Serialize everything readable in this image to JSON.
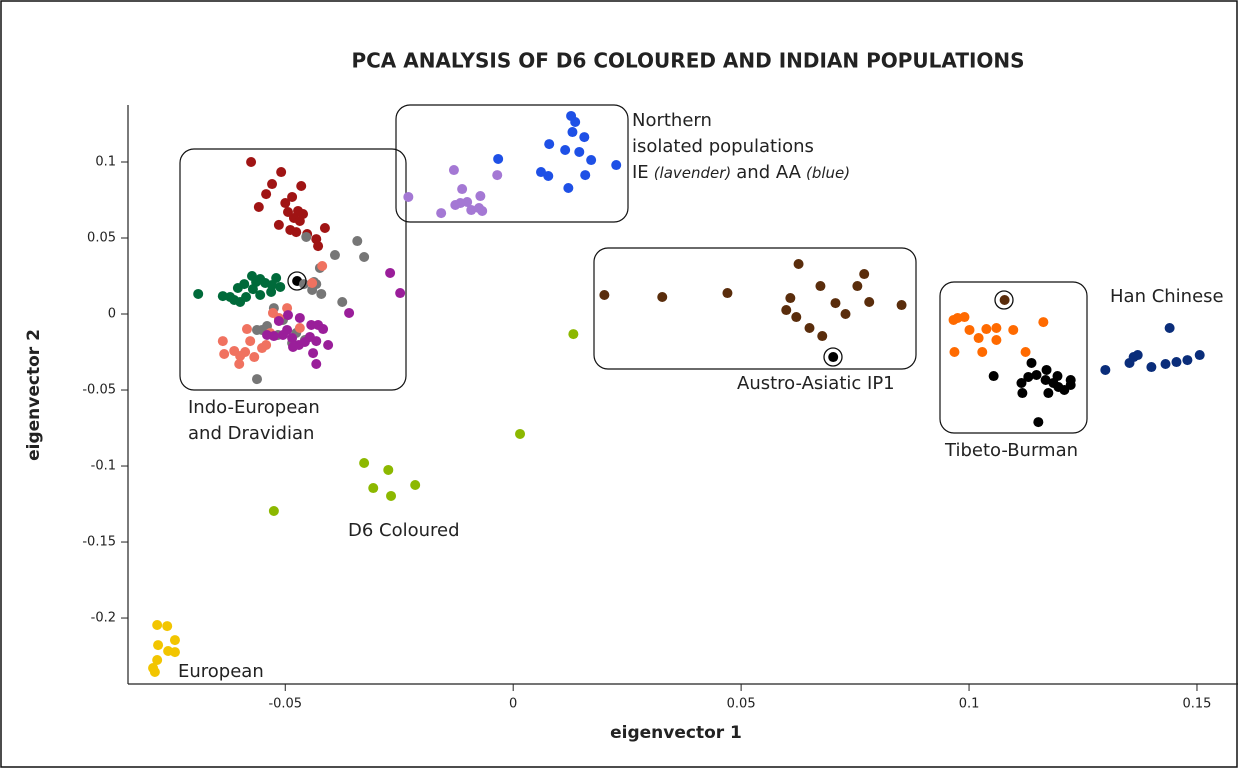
{
  "chart_data": {
    "type": "scatter",
    "title": "PCA ANALYSIS OF D6 COLOURED AND INDIAN POPULATIONS",
    "x_label": "eigenvector 1",
    "y_label": "eigenvector 2",
    "xlim": [
      -0.0845,
      0.159
    ],
    "ylim": [
      -0.2434,
      0.1375
    ],
    "xticks": [
      -0.05,
      0,
      0.05,
      0.1,
      0.15
    ],
    "yticks": [
      -0.2,
      -0.15,
      -0.1,
      -0.05,
      0,
      0.05,
      0.1
    ],
    "annotations": {
      "northern": [
        "Northern",
        "isolated populations"
      ],
      "northern_detail": [
        "IE",
        "(lavender)",
        "and AA",
        "(blue)"
      ],
      "indo_european": [
        "Indo-European",
        "and Dravidian"
      ],
      "austro_asiatic": "Austro-Asiatic IP1",
      "tibeto_burman": "Tibeto-Burman",
      "han": "Han Chinese",
      "d6": "D6 Coloured",
      "european": "European"
    },
    "series": [
      {
        "color": "#f2c500",
        "x": [
          -0.0781,
          -0.0759,
          -0.0742,
          -0.0779,
          -0.0757,
          -0.0742,
          -0.0781,
          -0.079,
          -0.0786
        ],
        "y": [
          -0.2046,
          -0.2053,
          -0.2145,
          -0.2178,
          -0.2217,
          -0.2224,
          -0.2276,
          -0.2329,
          -0.2355
        ]
      },
      {
        "color": "#8cb800",
        "x": [
          -0.0525,
          -0.0327,
          -0.0307,
          -0.0274,
          -0.0268,
          -0.0215,
          0.0015,
          0.0132
        ],
        "y": [
          -0.1296,
          -0.098,
          -0.1145,
          -0.1026,
          -0.1197,
          -0.1125,
          -0.0789,
          -0.0132
        ]
      },
      {
        "color": "#0a2d7a",
        "x": [
          0.1299,
          0.1352,
          0.1361,
          0.137,
          0.14,
          0.1431,
          0.144,
          0.1455,
          0.1479,
          0.1506
        ],
        "y": [
          -0.0368,
          -0.0322,
          -0.0283,
          -0.027,
          -0.0349,
          -0.0329,
          -0.0092,
          -0.0316,
          -0.0303,
          -0.027
        ]
      },
      {
        "color": "#ff6a00",
        "x": [
          0.0966,
          0.0975,
          0.099,
          0.0968,
          0.1001,
          0.1021,
          0.1038,
          0.106,
          0.1029,
          0.106,
          0.1097,
          0.1124,
          0.1163
        ],
        "y": [
          -0.0039,
          -0.0026,
          -0.002,
          -0.025,
          -0.0105,
          -0.0158,
          -0.0099,
          -0.0092,
          -0.025,
          -0.0171,
          -0.0105,
          -0.025,
          -0.0053
        ]
      },
      {
        "color": "#000000",
        "x": [
          0.1054,
          0.1115,
          0.1137,
          0.113,
          0.1117,
          0.1148,
          0.1152,
          0.1168,
          0.117,
          0.1185,
          0.1194,
          0.1209,
          0.1223,
          0.1223,
          0.1196,
          0.1174,
          0.0702,
          -0.0474
        ],
        "y": [
          -0.0408,
          -0.0454,
          -0.0322,
          -0.0414,
          -0.052,
          -0.0401,
          -0.0711,
          -0.0434,
          -0.0368,
          -0.0454,
          -0.0408,
          -0.05,
          -0.0467,
          -0.0434,
          -0.048,
          -0.052,
          -0.0283,
          0.0217
        ]
      },
      {
        "color": "#5a2d0c",
        "x": [
          0.02,
          0.0327,
          0.047,
          0.0608,
          0.0599,
          0.0621,
          0.0626,
          0.065,
          0.0674,
          0.0678,
          0.0707,
          0.0729,
          0.0755,
          0.077,
          0.0781,
          0.0852,
          0.1078
        ],
        "y": [
          0.0125,
          0.0112,
          0.0138,
          0.0105,
          0.0026,
          -0.002,
          0.0329,
          -0.0092,
          0.0184,
          -0.0145,
          0.0072,
          0,
          0.0184,
          0.0263,
          0.0079,
          0.0059,
          0.0092
        ]
      },
      {
        "color": "#a478d4",
        "x": [
          -0.023,
          -0.0158,
          -0.013,
          -0.0127,
          -0.0116,
          -0.0112,
          -0.0101,
          -0.0092,
          -0.0072,
          -0.0075,
          -0.0068,
          -0.0035
        ],
        "y": [
          0.077,
          0.0664,
          0.0947,
          0.0717,
          0.073,
          0.0822,
          0.0737,
          0.0684,
          0.0776,
          0.0697,
          0.0678,
          0.0914
        ]
      },
      {
        "color": "#1e50e6",
        "x": [
          -0.0033,
          0.0061,
          0.0077,
          0.0079,
          0.0114,
          0.0121,
          0.0127,
          0.0136,
          0.013,
          0.0145,
          0.0156,
          0.0158,
          0.0171,
          0.0226
        ],
        "y": [
          0.102,
          0.0934,
          0.0908,
          0.1118,
          0.1079,
          0.0829,
          0.1303,
          0.1263,
          0.1197,
          0.1066,
          0.1164,
          0.0914,
          0.1013,
          0.098
        ]
      },
      {
        "color": "#a01414",
        "x": [
          -0.0575,
          -0.0558,
          -0.0542,
          -0.0529,
          -0.0509,
          -0.05,
          -0.0494,
          -0.0489,
          -0.0485,
          -0.0481,
          -0.0472,
          -0.0468,
          -0.0461,
          -0.0452,
          -0.0465,
          -0.0432,
          -0.0428,
          -0.0413,
          -0.0514,
          -0.0476
        ],
        "y": [
          0.1,
          0.0704,
          0.0789,
          0.0855,
          0.0934,
          0.073,
          0.0671,
          0.0553,
          0.077,
          0.0632,
          0.0678,
          0.0612,
          0.0658,
          0.0526,
          0.0842,
          0.0493,
          0.0447,
          0.0566,
          0.0586,
          0.0539
        ]
      },
      {
        "color": "#006a3a",
        "x": [
          -0.0691,
          -0.0637,
          -0.0621,
          -0.0612,
          -0.0604,
          -0.0599,
          -0.059,
          -0.0586,
          -0.0573,
          -0.0571,
          -0.0564,
          -0.0555,
          -0.0544,
          -0.0529,
          -0.052,
          -0.0511,
          -0.0531,
          -0.0555
        ],
        "y": [
          0.0132,
          0.0118,
          0.0112,
          0.0092,
          0.0171,
          0.0079,
          0.0197,
          0.0112,
          0.025,
          0.0164,
          0.0211,
          0.023,
          0.0204,
          0.0191,
          0.0237,
          0.0178,
          0.0145,
          0.0125
        ]
      },
      {
        "color": "#767676",
        "x": [
          -0.0562,
          -0.0562,
          -0.0551,
          -0.054,
          -0.0525,
          -0.0516,
          -0.0505,
          -0.0485,
          -0.0476,
          -0.0457,
          -0.0459,
          -0.0454,
          -0.0441,
          -0.0432,
          -0.0424,
          -0.0421,
          -0.0391,
          -0.0375,
          -0.0342,
          -0.0327,
          -0.0437
        ],
        "y": [
          -0.0428,
          -0.0105,
          -0.0105,
          -0.0079,
          0.0039,
          -0.0138,
          -0.0039,
          -0.0191,
          -0.0125,
          -0.0171,
          0.0197,
          0.0507,
          0.0158,
          0.0197,
          0.0303,
          0.0132,
          0.0388,
          0.0079,
          0.048,
          0.0375,
          0.0211
        ]
      },
      {
        "color": "#f07260",
        "x": [
          -0.0637,
          -0.0634,
          -0.0612,
          -0.0601,
          -0.0588,
          -0.0577,
          -0.0568,
          -0.0584,
          -0.0551,
          -0.0542,
          -0.0533,
          -0.0527,
          -0.0514,
          -0.0496,
          -0.0468,
          -0.0441,
          -0.0419,
          -0.0599
        ],
        "y": [
          -0.0178,
          -0.0263,
          -0.0243,
          -0.0329,
          -0.025,
          -0.0178,
          -0.0283,
          -0.0099,
          -0.0224,
          -0.0204,
          -0.0125,
          0.0007,
          -0.0026,
          0.0039,
          -0.0092,
          0.0204,
          0.0316,
          -0.0276
        ]
      },
      {
        "color": "#9a1e9a",
        "x": [
          -0.054,
          -0.0525,
          -0.0514,
          -0.0505,
          -0.0496,
          -0.0485,
          -0.047,
          -0.0483,
          -0.0468,
          -0.0457,
          -0.0446,
          -0.0443,
          -0.0439,
          -0.0428,
          -0.0432,
          -0.0417,
          -0.0406,
          -0.0432,
          -0.036,
          -0.027,
          -0.0248,
          -0.0494
        ],
        "y": [
          -0.0138,
          -0.0145,
          -0.0046,
          -0.0138,
          -0.0105,
          -0.0158,
          -0.0204,
          -0.0217,
          -0.0026,
          -0.0184,
          -0.0151,
          -0.0072,
          -0.0257,
          -0.0072,
          -0.0329,
          -0.0099,
          -0.0204,
          -0.0178,
          0.0007,
          0.027,
          0.0138,
          -0.0007
        ]
      }
    ]
  }
}
